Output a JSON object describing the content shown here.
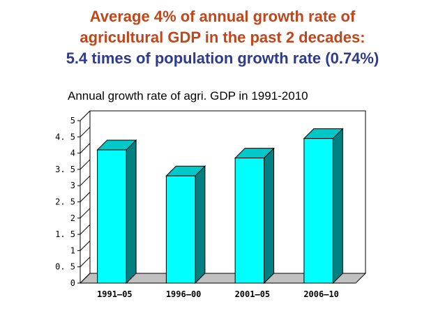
{
  "heading": {
    "line1": "Average 4% of annual growth rate of",
    "line2": "agricultural GDP in the past 2 decades:",
    "line3": "5.4 times of population growth rate (0.74%)"
  },
  "chart_data": {
    "type": "bar",
    "title": "Annual growth rate of  agri. GDP in 1991-2010",
    "categories": [
      "1991–05",
      "1996–00",
      "2001–05",
      "2006–10"
    ],
    "values": [
      4.1,
      3.3,
      3.85,
      4.45
    ],
    "ylim": [
      0,
      5
    ],
    "yticks": [
      "0",
      "0. 5",
      "1",
      "1. 5",
      "2",
      "2. 5",
      "3",
      "3. 5",
      "4",
      "4. 5",
      "5"
    ],
    "xlabel": "",
    "ylabel": "",
    "grid": false,
    "legend": "none",
    "colors": {
      "front": "#00ffff",
      "side": "#008080",
      "top": "#00c8c8",
      "axis": "#000000"
    }
  }
}
